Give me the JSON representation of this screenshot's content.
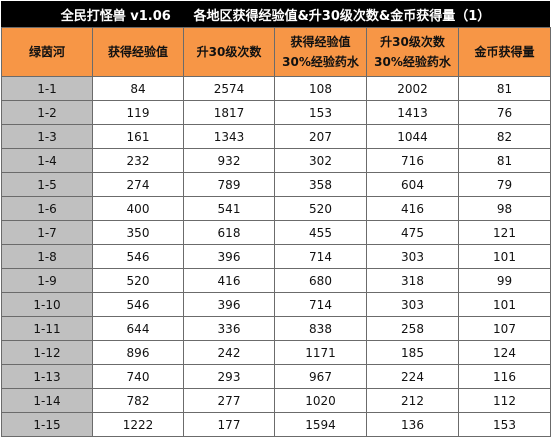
{
  "title": "全民打怪兽 v1.06     各地区获得经验值&升30级次数&金币获得量（1）",
  "headers": [
    [
      "绿茵河"
    ],
    [
      "获得经验值"
    ],
    [
      "升30级次数"
    ],
    [
      "获得经验值",
      "30%经验药水"
    ],
    [
      "升30级次数",
      "30%经验药水"
    ],
    [
      "金币获得量"
    ]
  ],
  "rows": [
    [
      "1-1",
      "84",
      "2574",
      "108",
      "2002",
      "81"
    ],
    [
      "1-2",
      "119",
      "1817",
      "153",
      "1413",
      "76"
    ],
    [
      "1-3",
      "161",
      "1343",
      "207",
      "1044",
      "82"
    ],
    [
      "1-4",
      "232",
      "932",
      "302",
      "716",
      "81"
    ],
    [
      "1-5",
      "274",
      "789",
      "358",
      "604",
      "79"
    ],
    [
      "1-6",
      "400",
      "541",
      "520",
      "416",
      "98"
    ],
    [
      "1-7",
      "350",
      "618",
      "455",
      "475",
      "121"
    ],
    [
      "1-8",
      "546",
      "396",
      "714",
      "303",
      "101"
    ],
    [
      "1-9",
      "520",
      "416",
      "680",
      "318",
      "99"
    ],
    [
      "1-10",
      "546",
      "396",
      "714",
      "303",
      "101"
    ],
    [
      "1-11",
      "644",
      "336",
      "838",
      "258",
      "107"
    ],
    [
      "1-12",
      "896",
      "242",
      "1171",
      "185",
      "124"
    ],
    [
      "1-13",
      "740",
      "293",
      "967",
      "224",
      "116"
    ],
    [
      "1-14",
      "782",
      "277",
      "1020",
      "212",
      "112"
    ],
    [
      "1-15",
      "1222",
      "177",
      "1594",
      "136",
      "153"
    ]
  ],
  "colors": {
    "title_bg": "#000000",
    "header_bg": "#f79646",
    "area_col_bg": "#c0c0c0",
    "grid": "#6b6b6b"
  }
}
